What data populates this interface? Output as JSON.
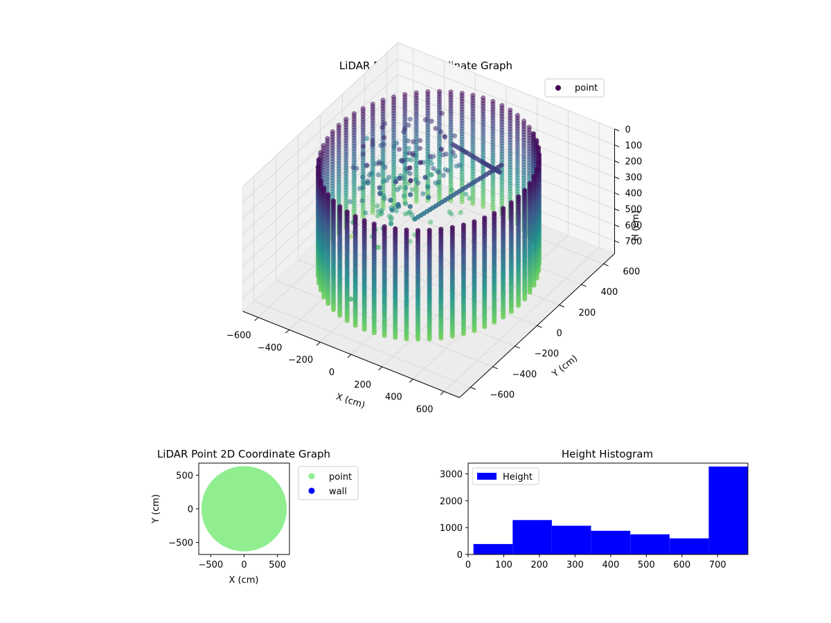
{
  "colors": {
    "viridis_top": "#440154",
    "viridis_mid": "#21918c",
    "viridis_low": "#5ec962",
    "viridis_bottom": "#fde725",
    "point_2d": "#90ee90",
    "wall_2d": "#0000ff",
    "histogram_bar": "#0000ff",
    "pane": "#f2f2f2",
    "grid": "#d9d9d9"
  },
  "chart_data": [
    {
      "type": "scatter3d",
      "title": "LiDAR Point 3D Coordinate Graph",
      "xlabel": "X (cm)",
      "ylabel": "Y (cm)",
      "zlabel": "H (cm)",
      "xlim": [
        -700,
        700
      ],
      "ylim": [
        -700,
        700
      ],
      "zlim": [
        780,
        0
      ],
      "x_ticks": [
        -600,
        -400,
        -200,
        0,
        200,
        400,
        600
      ],
      "y_ticks": [
        -600,
        -400,
        -200,
        0,
        200,
        400,
        600
      ],
      "z_ticks": [
        0,
        100,
        200,
        300,
        400,
        500,
        600,
        700
      ],
      "legend": [
        {
          "label": "point",
          "color": "#440154"
        }
      ],
      "legend_position": "upper-right",
      "colormap": "viridis",
      "wall": {
        "radius": 580,
        "columns": 60,
        "h_min": 20,
        "h_max": 700
      },
      "outliers": [
        {
          "x": -560,
          "y": 80,
          "h": 760
        },
        {
          "x": -130,
          "y": -520,
          "h": 600
        },
        {
          "x": -700,
          "y": 420,
          "h": 420
        }
      ]
    },
    {
      "type": "scatter",
      "title": "LiDAR Point 2D Coordinate Graph",
      "xlabel": "X (cm)",
      "ylabel": "Y (cm)",
      "xlim": [
        -680,
        680
      ],
      "ylim": [
        -680,
        680
      ],
      "x_ticks": [
        -500,
        0,
        500
      ],
      "y_ticks": [
        -500,
        0,
        500
      ],
      "series": [
        {
          "name": "point",
          "color": "#90ee90",
          "shape": "disc",
          "radius": 640
        },
        {
          "name": "wall",
          "color": "#0000ff",
          "points": []
        }
      ],
      "legend_position": "outside-right"
    },
    {
      "type": "histogram",
      "title": "Height Histogram",
      "xlabel": "",
      "ylabel": "",
      "xlim": [
        0,
        785
      ],
      "ylim": [
        0,
        3400
      ],
      "x_ticks": [
        0,
        100,
        200,
        300,
        400,
        500,
        600,
        700
      ],
      "y_ticks": [
        0,
        1000,
        2000,
        3000
      ],
      "bins": [
        {
          "start": 15,
          "end": 125,
          "count": 390
        },
        {
          "start": 125,
          "end": 235,
          "count": 1280
        },
        {
          "start": 235,
          "end": 345,
          "count": 1070
        },
        {
          "start": 345,
          "end": 455,
          "count": 880
        },
        {
          "start": 455,
          "end": 565,
          "count": 750
        },
        {
          "start": 565,
          "end": 675,
          "count": 600
        },
        {
          "start": 675,
          "end": 785,
          "count": 3270
        }
      ],
      "legend": [
        {
          "label": "Height",
          "color": "#0000ff"
        }
      ],
      "legend_position": "upper-left"
    }
  ]
}
